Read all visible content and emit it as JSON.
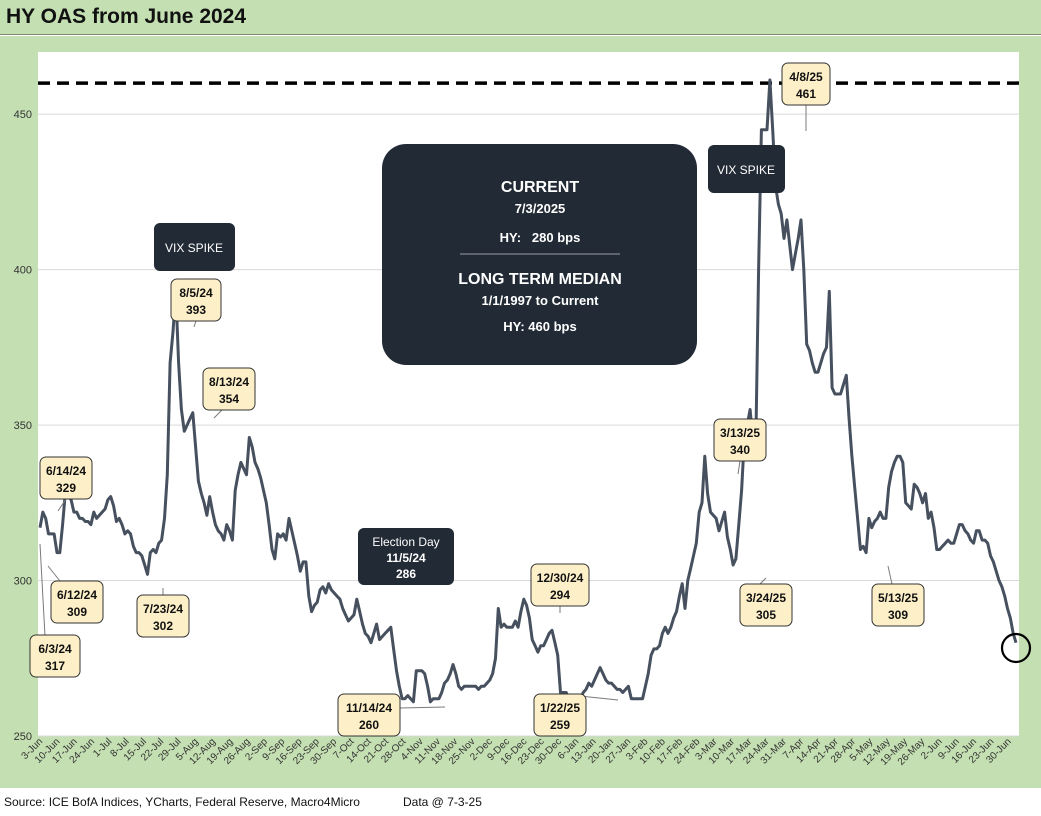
{
  "title": "HY OAS from June 2024",
  "footer": {
    "source": "Source: ICE BofA Indices, YCharts, Federal Reserve, Macro4Micro",
    "data_as_of": "Data @ 7-3-25"
  },
  "colors": {
    "frame": "#c4dfb2",
    "line": "#46505e",
    "dark_box": "#222a35",
    "callout_fill": "#fdf0c8",
    "grid": "#d9d9d9"
  },
  "chart_data": {
    "type": "line",
    "title": "HY OAS from June 2024",
    "xlabel": "",
    "ylabel": "",
    "ylim": [
      250,
      470
    ],
    "yticks": [
      250,
      300,
      350,
      400,
      450
    ],
    "grid": true,
    "legend": "none",
    "x_start": "2024-06-03",
    "x_end": "2025-07-03",
    "xtick_labels": [
      "3-Jun",
      "10-Jun",
      "17-Jun",
      "24-Jun",
      "1-Jul",
      "8-Jul",
      "15-Jul",
      "22-Jul",
      "29-Jul",
      "5-Aug",
      "12-Aug",
      "19-Aug",
      "26-Aug",
      "2-Sep",
      "9-Sep",
      "16-Sep",
      "23-Sep",
      "30-Sep",
      "7-Oct",
      "14-Oct",
      "21-Oct",
      "28-Oct",
      "4-Nov",
      "11-Nov",
      "18-Nov",
      "25-Nov",
      "2-Dec",
      "9-Dec",
      "16-Dec",
      "23-Dec",
      "30-Dec",
      "6-Jan",
      "13-Jan",
      "20-Jan",
      "27-Jan",
      "3-Feb",
      "10-Feb",
      "17-Feb",
      "24-Feb",
      "3-Mar",
      "10-Mar",
      "17-Mar",
      "24-Mar",
      "31-Mar",
      "7-Apr",
      "14-Apr",
      "21-Apr",
      "28-Apr",
      "5-May",
      "12-May",
      "19-May",
      "26-May",
      "2-Jun",
      "9-Jun",
      "16-Jun",
      "23-Jun",
      "30-Jun"
    ],
    "series": [
      {
        "values": [
          317,
          322,
          320,
          315,
          315,
          315,
          309,
          309,
          318,
          329,
          327,
          326,
          322,
          322,
          320,
          320,
          319,
          319,
          318,
          322,
          320,
          321,
          322,
          323,
          326,
          327,
          324,
          319,
          320,
          318,
          315,
          316,
          315,
          311,
          309,
          309,
          308,
          305,
          302,
          309,
          310,
          309,
          312,
          313,
          320,
          334,
          370,
          380,
          393,
          370,
          355,
          348,
          350,
          352,
          354,
          343,
          332,
          328,
          325,
          321,
          327,
          322,
          318,
          316,
          315,
          313,
          318,
          316,
          313,
          329,
          334,
          338,
          336,
          334,
          346,
          343,
          338,
          336,
          333,
          329,
          325,
          318,
          310,
          307,
          315,
          314,
          315,
          313,
          320,
          316,
          312,
          308,
          303,
          306,
          306,
          295,
          290,
          292,
          293,
          297,
          298,
          296,
          299,
          297,
          296,
          295,
          294,
          291,
          289,
          287,
          288,
          289,
          294,
          290,
          286,
          283,
          282,
          280,
          283,
          286,
          281,
          282,
          283,
          284,
          285,
          278,
          271,
          266,
          262,
          262,
          263,
          262,
          261,
          271,
          271,
          271,
          270,
          266,
          261,
          262,
          262,
          262,
          264,
          267,
          268,
          270,
          273,
          270,
          266,
          265,
          266,
          266,
          266,
          266,
          266,
          265,
          266,
          266,
          267,
          268,
          270,
          275,
          291,
          285,
          286,
          285,
          285,
          285,
          287,
          285,
          290,
          294,
          292,
          288,
          281,
          279,
          277,
          279,
          279,
          281,
          283,
          284,
          280,
          276,
          264,
          264,
          264,
          262,
          259,
          259,
          261,
          262,
          264,
          265,
          267,
          266,
          268,
          270,
          272,
          270,
          268,
          267,
          267,
          266,
          265,
          265,
          264,
          265,
          266,
          262,
          262,
          262,
          262,
          262,
          266,
          270,
          276,
          278,
          278,
          279,
          283,
          285,
          283,
          285,
          288,
          290,
          295,
          299,
          291,
          300,
          304,
          308,
          312,
          322,
          325,
          340,
          328,
          322,
          321,
          320,
          316,
          319,
          322,
          314,
          310,
          305,
          307,
          318,
          329,
          346,
          350,
          355,
          345,
          342,
          400,
          445,
          445,
          445,
          461,
          445,
          427,
          421,
          418,
          410,
          416,
          408,
          400,
          405,
          410,
          416,
          400,
          376,
          374,
          370,
          367,
          367,
          370,
          373,
          375,
          393,
          362,
          360,
          360,
          360,
          363,
          366,
          352,
          340,
          330,
          320,
          310,
          311,
          309,
          320,
          317,
          319,
          320,
          322,
          320,
          320,
          330,
          335,
          338,
          340,
          340,
          338,
          325,
          324,
          323,
          331,
          330,
          328,
          325,
          328,
          320,
          322,
          317,
          310,
          310,
          311,
          312,
          313,
          312,
          312,
          315,
          318,
          318,
          316,
          315,
          313,
          312,
          316,
          316,
          313,
          313,
          312,
          308,
          306,
          303,
          300,
          298,
          295,
          291,
          288,
          283,
          280
        ]
      }
    ],
    "median_line": 460,
    "annotations": {
      "callouts": [
        {
          "date": "6/3/24",
          "value": "317"
        },
        {
          "date": "6/14/24",
          "value": "329"
        },
        {
          "date": "6/12/24",
          "value": "309"
        },
        {
          "date": "7/23/24",
          "value": "302"
        },
        {
          "date": "8/5/24",
          "value": "393"
        },
        {
          "date": "8/13/24",
          "value": "354"
        },
        {
          "date": "11/14/24",
          "value": "260"
        },
        {
          "date": "12/30/24",
          "value": "294"
        },
        {
          "date": "1/22/25",
          "value": "259"
        },
        {
          "date": "3/13/25",
          "value": "340"
        },
        {
          "date": "3/24/25",
          "value": "305"
        },
        {
          "date": "4/8/25",
          "value": "461"
        },
        {
          "date": "5/13/25",
          "value": "309"
        }
      ],
      "election": {
        "line1": "Election Day",
        "line2": "11/5/24",
        "line3": "286"
      },
      "vix_spike_1": "VIX SPIKE",
      "vix_spike_2": "VIX SPIKE",
      "info_box": {
        "current_label": "CURRENT",
        "current_date": "7/3/2025",
        "current_value": "HY:   280 bps",
        "median_label": "LONG TERM MEDIAN",
        "median_period": "1/1/1997 to Current",
        "median_value": "HY: 460 bps"
      }
    }
  }
}
